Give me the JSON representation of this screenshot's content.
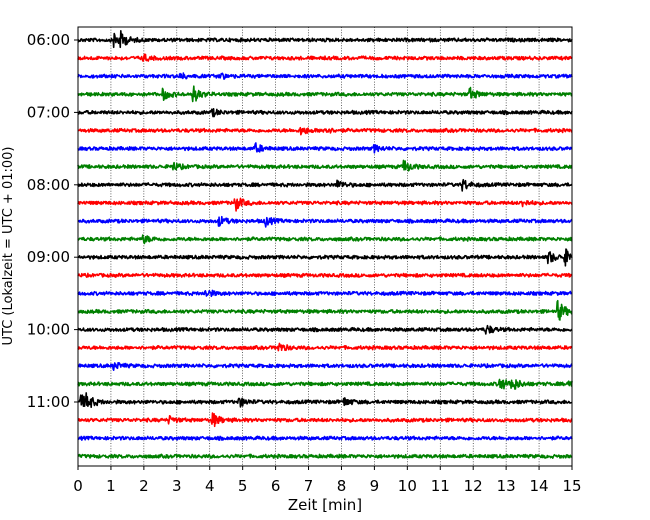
{
  "chart_data": {
    "type": "line",
    "xlabel": "Zeit  [min]",
    "ylabel": "UTC (Lokalzeit = UTC + 01:00)",
    "xlim": [
      0,
      15
    ],
    "x_ticks": [
      0,
      1,
      2,
      3,
      4,
      5,
      6,
      7,
      8,
      9,
      10,
      11,
      12,
      13,
      14,
      15
    ],
    "y_tick_labels": [
      "06:00",
      "07:00",
      "08:00",
      "09:00",
      "10:00",
      "11:00"
    ],
    "row_interval_minutes": 15,
    "start_time": "06:00",
    "grid": "vertical dotted lines at each minute",
    "row_colors": [
      "#000000",
      "#ff0000",
      "#0000ff",
      "#008000"
    ],
    "rows": [
      {
        "time": "06:00",
        "events": [
          {
            "t": 1.1,
            "amp": 0.5
          },
          {
            "t": 1.3,
            "amp": 0.4
          }
        ]
      },
      {
        "time": "06:15",
        "events": [
          {
            "t": 2.0,
            "amp": 0.2
          }
        ]
      },
      {
        "time": "06:30",
        "events": [
          {
            "t": 3.1,
            "amp": 0.2
          },
          {
            "t": 4.3,
            "amp": 0.2
          }
        ]
      },
      {
        "time": "06:45",
        "events": [
          {
            "t": 2.6,
            "amp": 0.35
          },
          {
            "t": 3.5,
            "amp": 0.55
          },
          {
            "t": 11.9,
            "amp": 0.4
          }
        ]
      },
      {
        "time": "07:00",
        "events": [
          {
            "t": 4.1,
            "amp": 0.2
          }
        ]
      },
      {
        "time": "07:15",
        "events": [
          {
            "t": 6.8,
            "amp": 0.25
          },
          {
            "t": 7.5,
            "amp": 0.2
          }
        ]
      },
      {
        "time": "07:30",
        "events": [
          {
            "t": 5.4,
            "amp": 0.3
          },
          {
            "t": 9.0,
            "amp": 0.2
          }
        ]
      },
      {
        "time": "07:45",
        "events": [
          {
            "t": 2.9,
            "amp": 0.25
          },
          {
            "t": 9.9,
            "amp": 0.45
          }
        ]
      },
      {
        "time": "08:00",
        "events": [
          {
            "t": 7.9,
            "amp": 0.25
          },
          {
            "t": 11.7,
            "amp": 0.35
          }
        ]
      },
      {
        "time": "08:15",
        "events": [
          {
            "t": 4.8,
            "amp": 0.45
          },
          {
            "t": 13.5,
            "amp": 0.2
          }
        ]
      },
      {
        "time": "08:30",
        "events": [
          {
            "t": 4.3,
            "amp": 0.3
          },
          {
            "t": 5.7,
            "amp": 0.3
          }
        ]
      },
      {
        "time": "08:45",
        "events": [
          {
            "t": 2.0,
            "amp": 0.25
          }
        ]
      },
      {
        "time": "09:00",
        "events": [
          {
            "t": 14.3,
            "amp": 0.4
          },
          {
            "t": 14.8,
            "amp": 0.5
          }
        ]
      },
      {
        "time": "09:15",
        "events": []
      },
      {
        "time": "09:30",
        "events": [
          {
            "t": 3.9,
            "amp": 0.25
          }
        ]
      },
      {
        "time": "09:45",
        "events": [
          {
            "t": 14.6,
            "amp": 0.65
          }
        ]
      },
      {
        "time": "10:00",
        "events": [
          {
            "t": 12.4,
            "amp": 0.3
          }
        ]
      },
      {
        "time": "10:15",
        "events": [
          {
            "t": 6.1,
            "amp": 0.3
          }
        ]
      },
      {
        "time": "10:30",
        "events": [
          {
            "t": 1.1,
            "amp": 0.25
          }
        ]
      },
      {
        "time": "10:45",
        "events": [
          {
            "t": 12.8,
            "amp": 0.5
          },
          {
            "t": 13.2,
            "amp": 0.4
          },
          {
            "t": 14.9,
            "amp": 0.35
          }
        ]
      },
      {
        "time": "11:00",
        "events": [
          {
            "t": 0.1,
            "amp": 0.45
          },
          {
            "t": 0.3,
            "amp": 0.35
          },
          {
            "t": 4.9,
            "amp": 0.3
          },
          {
            "t": 8.1,
            "amp": 0.25
          }
        ]
      },
      {
        "time": "11:15",
        "events": [
          {
            "t": 4.1,
            "amp": 0.45
          },
          {
            "t": 2.8,
            "amp": 0.2
          }
        ]
      },
      {
        "time": "11:30",
        "events": []
      },
      {
        "time": "11:45",
        "events": []
      }
    ]
  }
}
